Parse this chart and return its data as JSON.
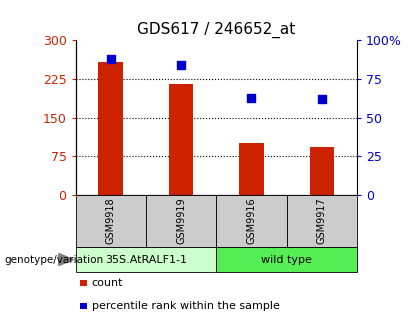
{
  "title": "GDS617 / 246652_at",
  "samples": [
    "GSM9918",
    "GSM9919",
    "GSM9916",
    "GSM9917"
  ],
  "counts": [
    258,
    215,
    100,
    93
  ],
  "percentiles": [
    88,
    84,
    63,
    62
  ],
  "ylim_left": [
    0,
    300
  ],
  "ylim_right": [
    0,
    100
  ],
  "yticks_left": [
    0,
    75,
    150,
    225,
    300
  ],
  "yticks_right": [
    0,
    25,
    50,
    75,
    100
  ],
  "ytick_labels_left": [
    "0",
    "75",
    "150",
    "225",
    "300"
  ],
  "ytick_labels_right": [
    "0",
    "25",
    "50",
    "75",
    "100%"
  ],
  "bar_color": "#cc2200",
  "dot_color": "#0000cc",
  "group1_label": "35S.AtRALF1-1",
  "group2_label": "wild type",
  "group1_color": "#ccffcc",
  "group2_color": "#55ee55",
  "group1_count": 2,
  "group2_count": 2,
  "genotype_label": "genotype/variation",
  "legend_count": "count",
  "legend_percentile": "percentile rank within the sample",
  "bg_color": "#ffffff",
  "plot_bg_color": "#ffffff",
  "cell_bg_color": "#cccccc",
  "bar_width": 0.35,
  "dot_size": 40
}
